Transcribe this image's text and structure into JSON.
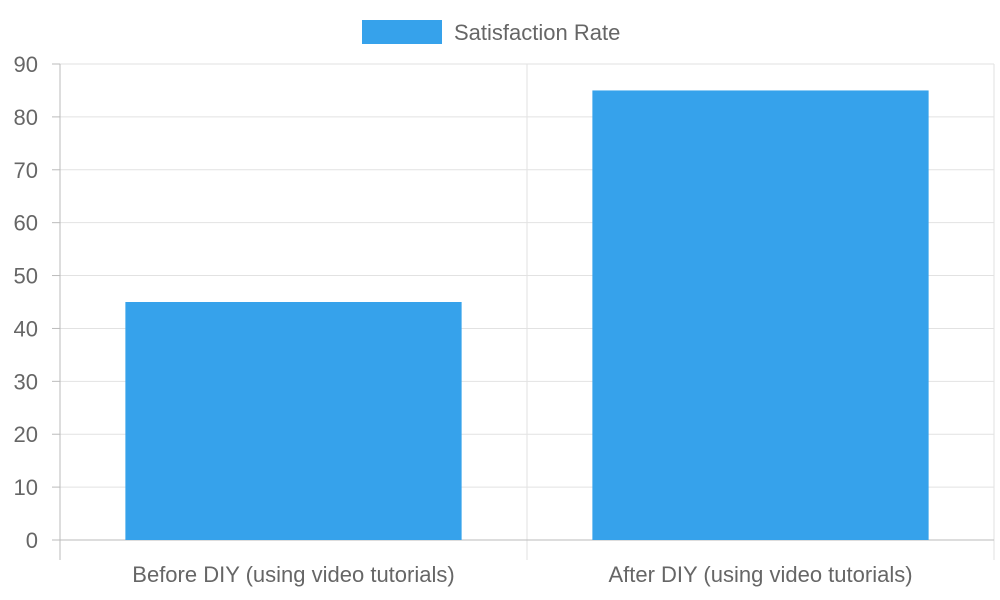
{
  "chart_data": {
    "type": "bar",
    "categories": [
      "Before DIY (using video tutorials)",
      "After DIY (using video tutorials)"
    ],
    "series": [
      {
        "name": "Satisfaction Rate",
        "values": [
          45,
          85
        ],
        "color": "#36a2eb"
      }
    ],
    "title": "",
    "xlabel": "",
    "ylabel": "",
    "ylim": [
      0,
      90
    ],
    "yticks": [
      0,
      10,
      20,
      30,
      40,
      50,
      60,
      70,
      80,
      90
    ],
    "grid": true,
    "legend": "top-center"
  }
}
